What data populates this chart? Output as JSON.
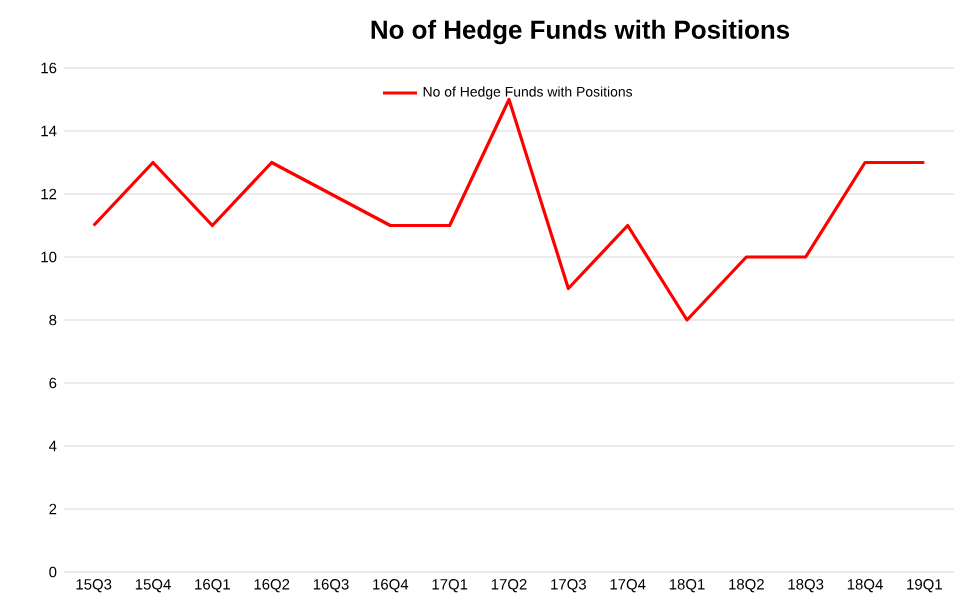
{
  "chart_data": {
    "type": "line",
    "title": "No of Hedge Funds with Positions",
    "categories": [
      "15Q3",
      "15Q4",
      "16Q1",
      "16Q2",
      "16Q3",
      "16Q4",
      "17Q1",
      "17Q2",
      "17Q3",
      "17Q4",
      "18Q1",
      "18Q2",
      "18Q3",
      "18Q4",
      "19Q1"
    ],
    "series": [
      {
        "name": "No of Hedge Funds with Positions",
        "color": "#ff0000",
        "values": [
          11,
          13,
          11,
          13,
          12,
          11,
          11,
          15,
          9,
          11,
          8,
          10,
          10,
          13,
          13
        ]
      }
    ],
    "ylim": [
      0,
      16
    ],
    "yticks": [
      0,
      2,
      4,
      6,
      8,
      10,
      12,
      14,
      16
    ],
    "grid": "y",
    "legend": "top",
    "marker": "none",
    "line_style": "solid"
  }
}
